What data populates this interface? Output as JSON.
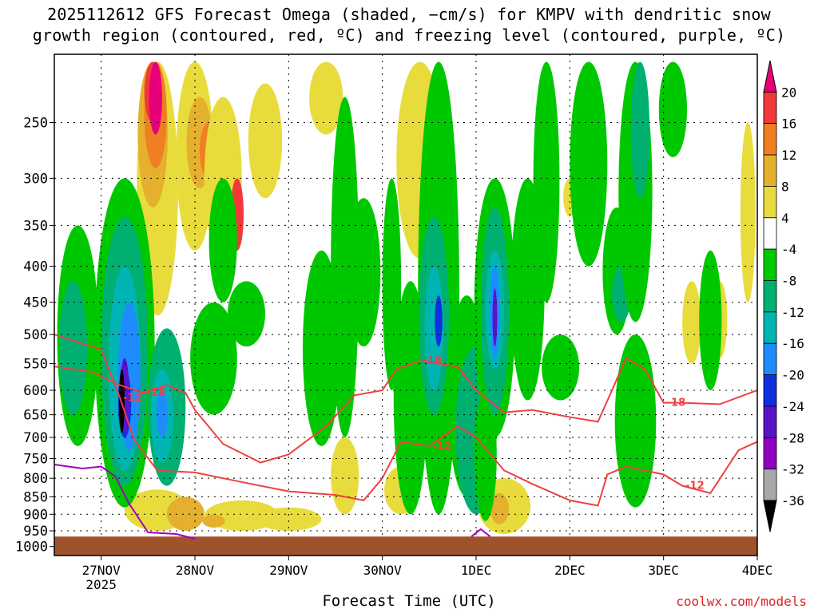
{
  "header": {
    "title_line1": "2025112612 GFS Forecast Omega (shaded, −cm/s) for KMPV with dendritic snow",
    "title_line2": "growth region (contoured, red, ºC) and freezing level (contoured, purple, ºC)"
  },
  "footer": {
    "xlabel": "Forecast Time (UTC)",
    "credit": "coolwx.com/models"
  },
  "colors": {
    "dgz_contour": "#f04040",
    "freezing_contour": "#a000c0",
    "terrain": "#a0522d"
  },
  "chart_data": {
    "type": "heatmap",
    "title": "2025112612 GFS Forecast Omega (shaded, −cm/s) for KMPV with dendritic snow growth region (contoured, red, ºC) and freezing level (contoured, purple, ºC)",
    "xlabel": "Forecast Time (UTC)",
    "ylabel": "",
    "x_ticks": [
      "27NOV\n2025",
      "28NOV",
      "29NOV",
      "30NOV",
      "1DEC",
      "2DEC",
      "3DEC",
      "4DEC"
    ],
    "x_range_days": [
      26.5,
      34.0
    ],
    "y_ticks": [
      250,
      300,
      350,
      400,
      450,
      500,
      550,
      600,
      650,
      700,
      750,
      800,
      850,
      900,
      950,
      1000
    ],
    "y_scale": "log-pressure (hPa), inverted",
    "y_range": [
      200,
      1030
    ],
    "grid": true,
    "colorbar": {
      "labels": [
        20,
        16,
        12,
        8,
        4,
        -4,
        -8,
        -12,
        -16,
        -20,
        -24,
        -28,
        -32,
        -36
      ],
      "colors": [
        "#e8007a",
        "#f23838",
        "#ef7f22",
        "#e5b02e",
        "#e8dc3c",
        "#ffffff",
        "#00c800",
        "#00b070",
        "#00b4b4",
        "#1e8cff",
        "#1030e0",
        "#5a14c8",
        "#9000c0",
        "#a8a8a8",
        "#000000"
      ]
    },
    "series": [
      {
        "name": "-18",
        "points": [
          {
            "x": 26.5,
            "p": 555
          },
          {
            "x": 26.9,
            "p": 565
          },
          {
            "x": 27.2,
            "p": 590
          },
          {
            "x": 27.45,
            "p": 605
          },
          {
            "x": 27.7,
            "p": 590
          },
          {
            "x": 27.9,
            "p": 605
          },
          {
            "x": 28.0,
            "p": 640
          },
          {
            "x": 28.3,
            "p": 715
          },
          {
            "x": 28.7,
            "p": 760
          },
          {
            "x": 29.0,
            "p": 740
          },
          {
            "x": 29.4,
            "p": 675
          },
          {
            "x": 29.7,
            "p": 610
          },
          {
            "x": 30.0,
            "p": 600
          },
          {
            "x": 30.15,
            "p": 560
          },
          {
            "x": 30.4,
            "p": 545
          },
          {
            "x": 30.8,
            "p": 555
          },
          {
            "x": 31.0,
            "p": 600
          },
          {
            "x": 31.3,
            "p": 645
          },
          {
            "x": 31.6,
            "p": 640
          },
          {
            "x": 32.0,
            "p": 655
          },
          {
            "x": 32.3,
            "p": 665
          },
          {
            "x": 32.45,
            "p": 600
          },
          {
            "x": 32.6,
            "p": 540
          },
          {
            "x": 32.8,
            "p": 560
          },
          {
            "x": 33.0,
            "p": 625
          },
          {
            "x": 33.2,
            "p": 625
          },
          {
            "x": 33.6,
            "p": 628
          },
          {
            "x": 34.0,
            "p": 600
          }
        ]
      },
      {
        "name": "-12",
        "points": [
          {
            "x": 26.5,
            "p": 500
          },
          {
            "x": 26.8,
            "p": 515
          },
          {
            "x": 27.0,
            "p": 525
          },
          {
            "x": 27.2,
            "p": 615
          },
          {
            "x": 27.35,
            "p": 705
          },
          {
            "x": 27.6,
            "p": 780
          },
          {
            "x": 28.0,
            "p": 785
          },
          {
            "x": 28.5,
            "p": 810
          },
          {
            "x": 29.0,
            "p": 835
          },
          {
            "x": 29.5,
            "p": 845
          },
          {
            "x": 29.8,
            "p": 860
          },
          {
            "x": 30.0,
            "p": 800
          },
          {
            "x": 30.2,
            "p": 710
          },
          {
            "x": 30.5,
            "p": 720
          },
          {
            "x": 30.8,
            "p": 675
          },
          {
            "x": 31.0,
            "p": 700
          },
          {
            "x": 31.3,
            "p": 780
          },
          {
            "x": 31.6,
            "p": 815
          },
          {
            "x": 32.0,
            "p": 860
          },
          {
            "x": 32.3,
            "p": 875
          },
          {
            "x": 32.4,
            "p": 790
          },
          {
            "x": 32.6,
            "p": 770
          },
          {
            "x": 33.0,
            "p": 790
          },
          {
            "x": 33.2,
            "p": 820
          },
          {
            "x": 33.5,
            "p": 840
          },
          {
            "x": 33.8,
            "p": 730
          },
          {
            "x": 34.0,
            "p": 710
          }
        ]
      },
      {
        "name": "0C",
        "points": [
          {
            "x": 26.5,
            "p": 765
          },
          {
            "x": 26.8,
            "p": 775
          },
          {
            "x": 27.0,
            "p": 770
          },
          {
            "x": 27.15,
            "p": 795
          },
          {
            "x": 27.3,
            "p": 870
          },
          {
            "x": 27.5,
            "p": 955
          },
          {
            "x": 27.8,
            "p": 960
          },
          {
            "x": 28.0,
            "p": 975
          }
        ]
      }
    ]
  }
}
